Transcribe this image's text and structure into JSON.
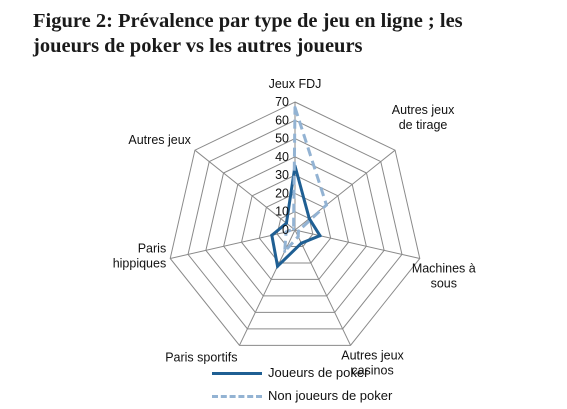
{
  "figure": {
    "title_line1": "Figure 2: Prévalence par type de jeu en ligne ; les",
    "title_line2": "joueurs de poker vs les autres joueurs"
  },
  "chart_data": {
    "type": "radar",
    "categories": [
      [
        "Jeux FDJ"
      ],
      [
        "Autres jeux",
        "de tirage"
      ],
      [
        "Machines à",
        "sous"
      ],
      [
        "Autres jeux",
        "casinos"
      ],
      [
        "Paris sportifs"
      ],
      [
        "Paris",
        "hippiques"
      ],
      [
        "Autres jeux"
      ]
    ],
    "rlim": [
      0,
      70
    ],
    "ticks": [
      0,
      10,
      20,
      30,
      40,
      50,
      60,
      70
    ],
    "tick_labels": [
      "0",
      "10",
      "20",
      "30",
      "40",
      "50",
      "60",
      "70"
    ],
    "grid": true,
    "legend_position": "bottom",
    "series": [
      {
        "name": "Joueurs de poker",
        "values": [
          35,
          10,
          14,
          8,
          22,
          13,
          6
        ],
        "color": "#1f5f93",
        "style": "solid"
      },
      {
        "name": "Non joueurs de poker",
        "values": [
          67,
          22,
          2,
          4,
          13,
          5,
          1
        ],
        "color": "#93b3d3",
        "style": "dashed"
      }
    ]
  }
}
